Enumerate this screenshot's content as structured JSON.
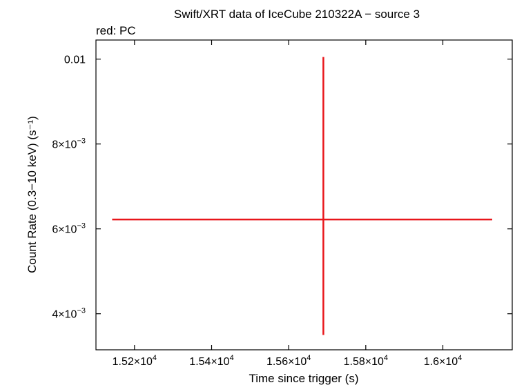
{
  "chart_data": {
    "type": "scatter",
    "title": "Swift/XRT data of IceCube 210322A − source 3",
    "subtitle": "red: PC",
    "xlabel": "Time since trigger (s)",
    "ylabel": "Count Rate (0.3−10 keV) (s⁻¹)",
    "xlim": [
      15100,
      16180
    ],
    "ylim": [
      0.00315,
      0.01045
    ],
    "xticks": [
      {
        "value": 15200,
        "mantissa": "1.52×10",
        "exp": "4"
      },
      {
        "value": 15400,
        "mantissa": "1.54×10",
        "exp": "4"
      },
      {
        "value": 15600,
        "mantissa": "1.56×10",
        "exp": "4"
      },
      {
        "value": 15800,
        "mantissa": "1.58×10",
        "exp": "4"
      },
      {
        "value": 16000,
        "mantissa": "1.6×10",
        "exp": "4"
      }
    ],
    "yticks": [
      {
        "value": 0.004,
        "mantissa": "4×10",
        "exp": "−3"
      },
      {
        "value": 0.006,
        "mantissa": "6×10",
        "exp": "−3"
      },
      {
        "value": 0.008,
        "mantissa": "8×10",
        "exp": "−3"
      },
      {
        "value": 0.01,
        "mantissa": "0.01",
        "exp": ""
      }
    ],
    "series": [
      {
        "name": "PC",
        "color": "#e8161b",
        "points": [
          {
            "x": 15690,
            "xerr_low": 15142,
            "xerr_high": 16128,
            "y": 0.00622,
            "yerr_low": 0.0035,
            "yerr_high": 0.01005
          }
        ]
      }
    ],
    "grid": false
  }
}
